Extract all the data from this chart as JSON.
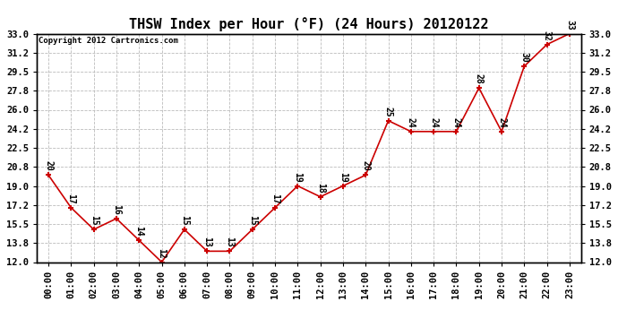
{
  "title": "THSW Index per Hour (°F) (24 Hours) 20120122",
  "copyright": "Copyright 2012 Cartronics.com",
  "hours": [
    "00:00",
    "01:00",
    "02:00",
    "03:00",
    "04:00",
    "05:00",
    "06:00",
    "07:00",
    "08:00",
    "09:00",
    "10:00",
    "11:00",
    "12:00",
    "13:00",
    "14:00",
    "15:00",
    "16:00",
    "17:00",
    "18:00",
    "19:00",
    "20:00",
    "21:00",
    "22:00",
    "23:00"
  ],
  "values": [
    20,
    17,
    15,
    16,
    14,
    12,
    15,
    13,
    13,
    15,
    17,
    19,
    18,
    19,
    20,
    25,
    24,
    24,
    24,
    28,
    24,
    30,
    32,
    33
  ],
  "line_color": "#cc0000",
  "marker_color": "#cc0000",
  "bg_color": "#ffffff",
  "plot_bg_color": "#ffffff",
  "grid_color": "#bbbbbb",
  "title_fontsize": 11,
  "copyright_fontsize": 6.5,
  "label_fontsize": 7,
  "tick_fontsize": 7.5,
  "ylim": [
    12.0,
    33.0
  ],
  "yticks": [
    12.0,
    13.8,
    15.5,
    17.2,
    19.0,
    20.8,
    22.5,
    24.2,
    26.0,
    27.8,
    29.5,
    31.2,
    33.0
  ]
}
